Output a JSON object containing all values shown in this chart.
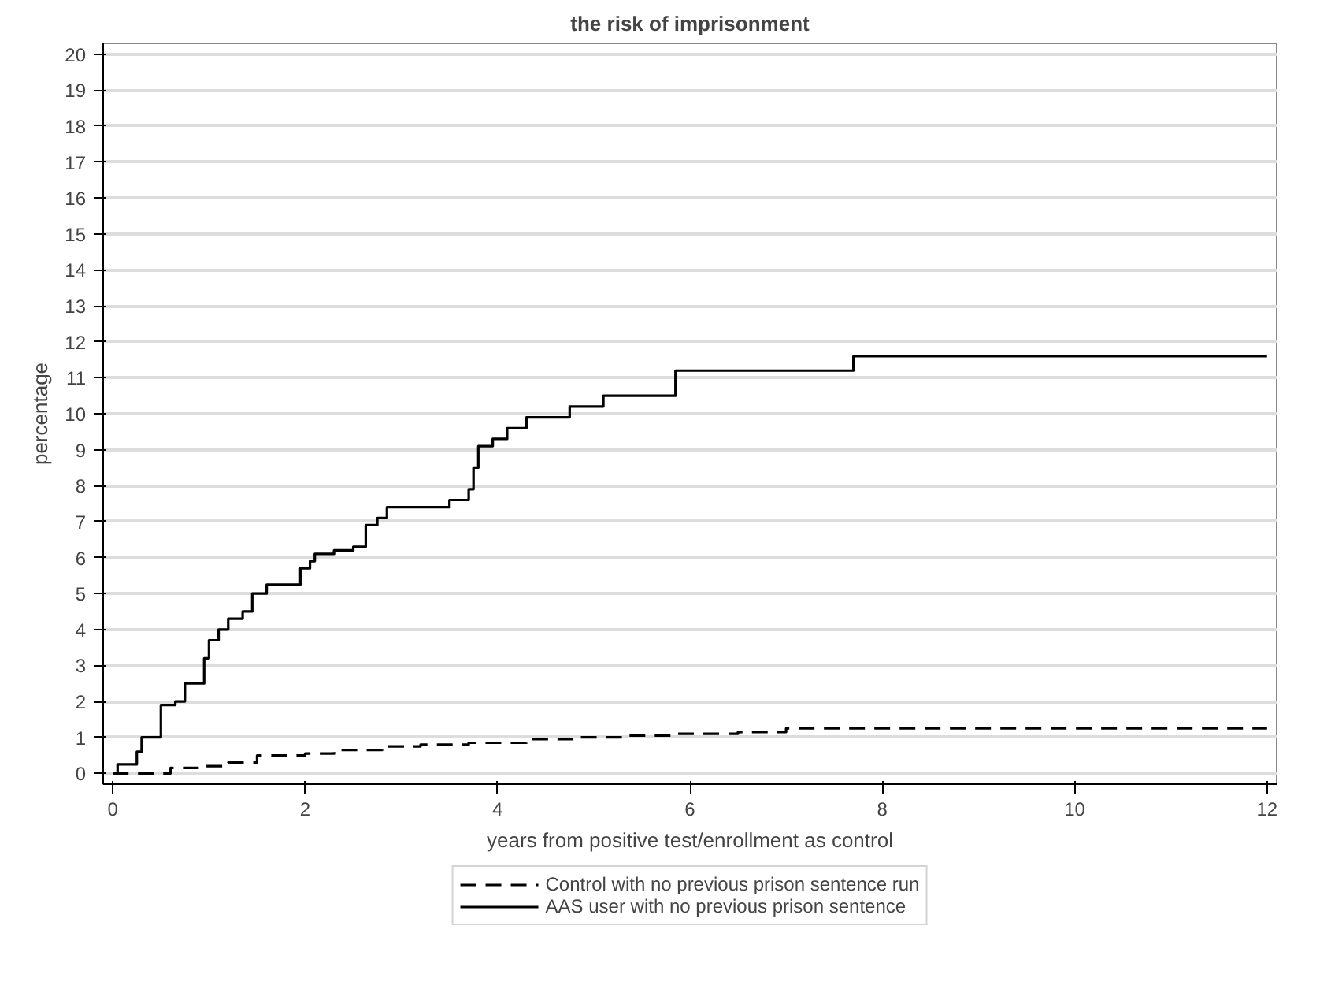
{
  "chart_data": {
    "type": "step",
    "title": "the risk of imprisonment",
    "xlabel": "years from positive test/enrollment as control",
    "ylabel": "percentage",
    "xlim": [
      -0.1,
      12.1
    ],
    "ylim": [
      -0.3,
      20.3
    ],
    "xticks": [
      0,
      2,
      4,
      6,
      8,
      10,
      12
    ],
    "yticks": [
      0,
      1,
      2,
      3,
      4,
      5,
      6,
      7,
      8,
      9,
      10,
      11,
      12,
      13,
      14,
      15,
      16,
      17,
      18,
      19,
      20
    ],
    "grid": "y",
    "legend": "bottom",
    "series": [
      {
        "name": "Control with no previous prison sentence run",
        "color": "#000000",
        "line_style": "dashed",
        "x": [
          0,
          0.6,
          0.9,
          1.2,
          1.5,
          2.0,
          2.3,
          2.8,
          3.2,
          3.7,
          4.3,
          4.8,
          5.3,
          5.8,
          6.5,
          7.0,
          12
        ],
        "values": [
          0,
          0.15,
          0.2,
          0.3,
          0.5,
          0.55,
          0.65,
          0.75,
          0.8,
          0.85,
          0.95,
          1.0,
          1.05,
          1.1,
          1.15,
          1.25,
          1.25
        ]
      },
      {
        "name": "AAS user with no previous prison sentence",
        "color": "#000000",
        "line_style": "solid",
        "x": [
          0,
          0.05,
          0.2,
          0.25,
          0.3,
          0.45,
          0.5,
          0.65,
          0.75,
          0.9,
          0.95,
          1.0,
          1.1,
          1.2,
          1.35,
          1.45,
          1.6,
          1.95,
          2.05,
          2.1,
          2.3,
          2.5,
          2.63,
          2.75,
          2.85,
          3.3,
          3.5,
          3.7,
          3.75,
          3.8,
          3.95,
          4.1,
          4.3,
          4.75,
          5.1,
          5.85,
          7.7,
          12
        ],
        "values": [
          0,
          0.25,
          0.25,
          0.6,
          1.0,
          1.0,
          1.9,
          2.0,
          2.5,
          2.5,
          3.2,
          3.7,
          4.0,
          4.3,
          4.5,
          5.0,
          5.25,
          5.7,
          5.9,
          6.1,
          6.2,
          6.3,
          6.9,
          7.1,
          7.4,
          7.4,
          7.6,
          7.9,
          8.5,
          9.1,
          9.3,
          9.6,
          9.9,
          10.2,
          10.5,
          11.2,
          11.6,
          11.6
        ]
      }
    ]
  }
}
